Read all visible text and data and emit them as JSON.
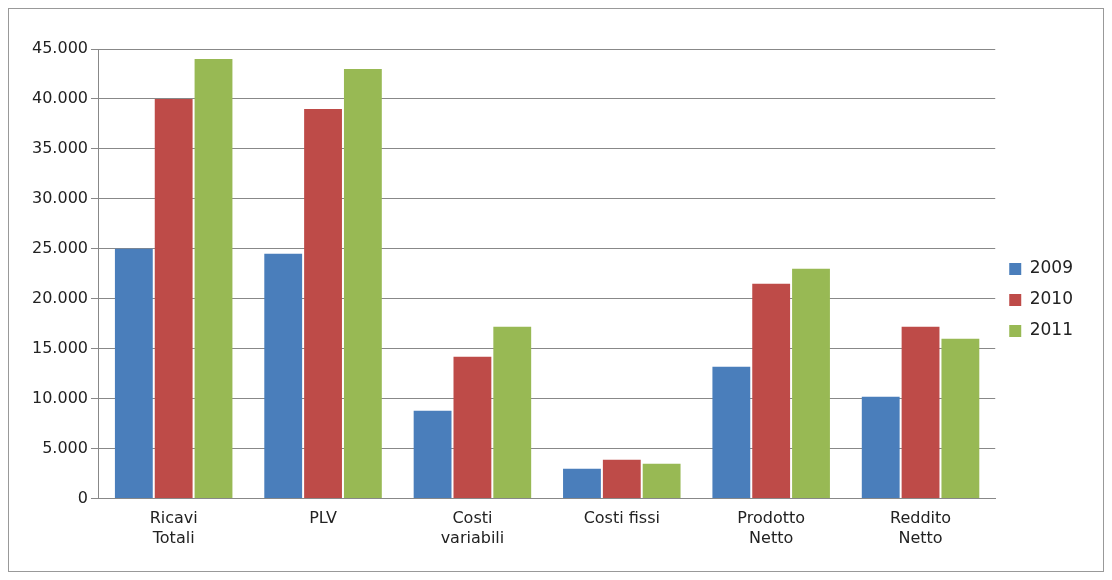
{
  "chart_data": {
    "type": "bar",
    "categories": [
      "Ricavi Totali",
      "PLV",
      "Costi variabili",
      "Costi fissi",
      "Prodotto Netto",
      "Reddito Netto"
    ],
    "series": [
      {
        "name": "2009",
        "color": "#4a7ebb",
        "values": [
          25000,
          24500,
          8800,
          3000,
          13200,
          10200
        ]
      },
      {
        "name": "2010",
        "color": "#be4b48",
        "values": [
          40000,
          39000,
          14200,
          3900,
          21500,
          17200
        ]
      },
      {
        "name": "2011",
        "color": "#98b954",
        "values": [
          44000,
          43000,
          17200,
          3500,
          23000,
          16000
        ]
      }
    ],
    "ylim": [
      0,
      45000
    ],
    "yticks": [
      {
        "value": 0,
        "label": "0"
      },
      {
        "value": 5000,
        "label": "5.000"
      },
      {
        "value": 10000,
        "label": "10.000"
      },
      {
        "value": 15000,
        "label": "15.000"
      },
      {
        "value": 20000,
        "label": "20.000"
      },
      {
        "value": 25000,
        "label": "25.000"
      },
      {
        "value": 30000,
        "label": "30.000"
      },
      {
        "value": 35000,
        "label": "35.000"
      },
      {
        "value": 40000,
        "label": "40.000"
      },
      {
        "value": 45000,
        "label": "45.000"
      }
    ],
    "grid": "y",
    "legend": "right"
  }
}
